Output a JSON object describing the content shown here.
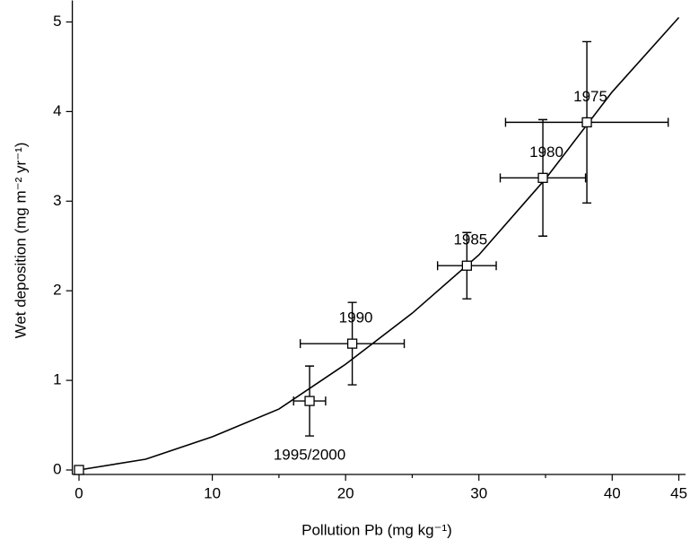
{
  "chart_data": {
    "type": "scatter",
    "x_label": "Pollution Pb (mg kg⁻¹)",
    "y_label": "Wet deposition (mg m⁻² yr⁻¹)",
    "xlim": [
      -0.5,
      45.5
    ],
    "ylim": [
      -0.05,
      5.16
    ],
    "xticks": [
      0,
      10,
      15,
      20,
      25,
      30,
      35,
      40,
      45
    ],
    "yticks": [
      0,
      1,
      2,
      3,
      4,
      5
    ],
    "color": "#000000",
    "points": {
      "x": [
        0,
        17.3,
        20.5,
        29.1,
        34.8,
        38.1
      ],
      "values": [
        0,
        0.77,
        1.41,
        2.28,
        3.26,
        3.88
      ],
      "x_err": [
        0,
        1.2,
        3.9,
        2.2,
        3.2,
        6.1
      ],
      "y_err": [
        0,
        0.39,
        0.46,
        0.37,
        0.65,
        0.9
      ],
      "labels": [
        null,
        "1995/2000",
        "1990",
        "1985",
        "1980",
        "1975"
      ]
    },
    "fit": {
      "x": [
        0,
        5,
        10,
        15,
        20,
        25,
        30,
        35,
        40,
        45
      ],
      "values": [
        0,
        0.12,
        0.37,
        0.68,
        1.18,
        1.75,
        2.4,
        3.25,
        4.22,
        5.05
      ]
    }
  }
}
